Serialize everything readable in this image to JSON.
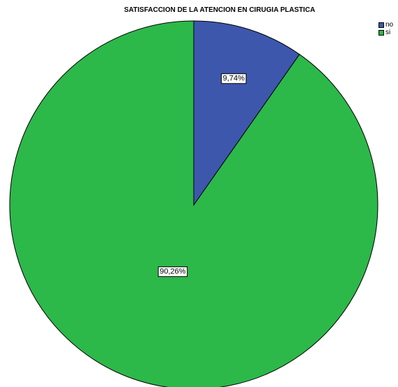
{
  "chart_data": {
    "type": "pie",
    "title": "SATISFACCION DE LA ATENCION EN CIRUGIA PLASTICA",
    "categories": [
      "no",
      "si"
    ],
    "values": [
      9.74,
      90.26
    ],
    "labels": [
      "9,74%",
      "90,26%"
    ],
    "colors": [
      "#3d57ad",
      "#2db84a"
    ],
    "legend_position": "top-right"
  }
}
